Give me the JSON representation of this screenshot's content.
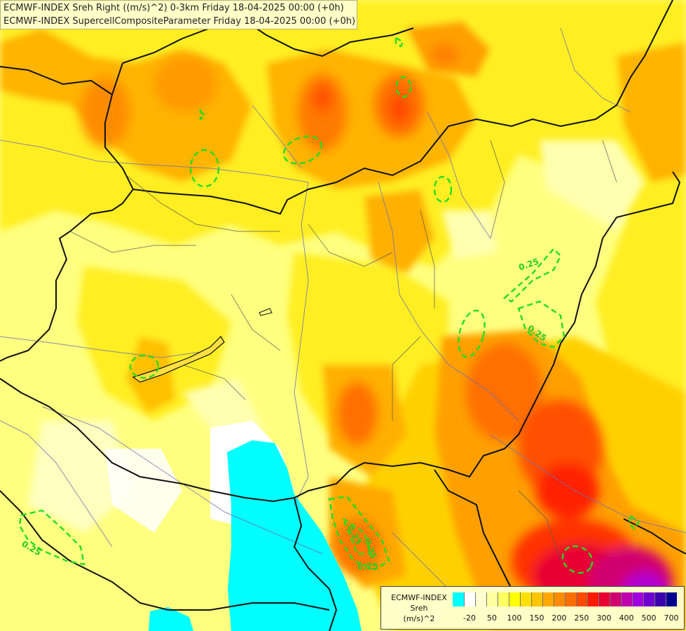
{
  "title": {
    "line1": "ECMWF-INDEX Sreh Right ((m/s)^2) 0-3km Friday 18-04-2025 00:00 (+0h)",
    "line2": "ECMWF-INDEX SupercellCompositeParameter Friday 18-04-2025 00:00 (+0h)"
  },
  "colors": {
    "low": "#00ffff",
    "background_field": "#ffff80",
    "contour": "#22dd22"
  },
  "contour_labels": [
    "0.25",
    "0.25",
    "0.25",
    "0.25",
    "0.25",
    "0.25"
  ],
  "legend": {
    "name": [
      "ECMWF-INDEX",
      "Sreh",
      "(m/s)^2"
    ],
    "colors": [
      "#00ffff",
      "#ffffff",
      "#ffffd0",
      "#ffffa0",
      "#ffff60",
      "#ffff00",
      "#ffe000",
      "#ffc400",
      "#ffa800",
      "#ff8c00",
      "#ff6e00",
      "#ff4a00",
      "#ff1a00",
      "#e80030",
      "#d00070",
      "#c000b0",
      "#a000e0",
      "#7000d0",
      "#3a00b0",
      "#000090"
    ],
    "ticks": [
      "-20",
      "50",
      "100",
      "150",
      "200",
      "250",
      "300",
      "400",
      "500",
      "700"
    ]
  }
}
